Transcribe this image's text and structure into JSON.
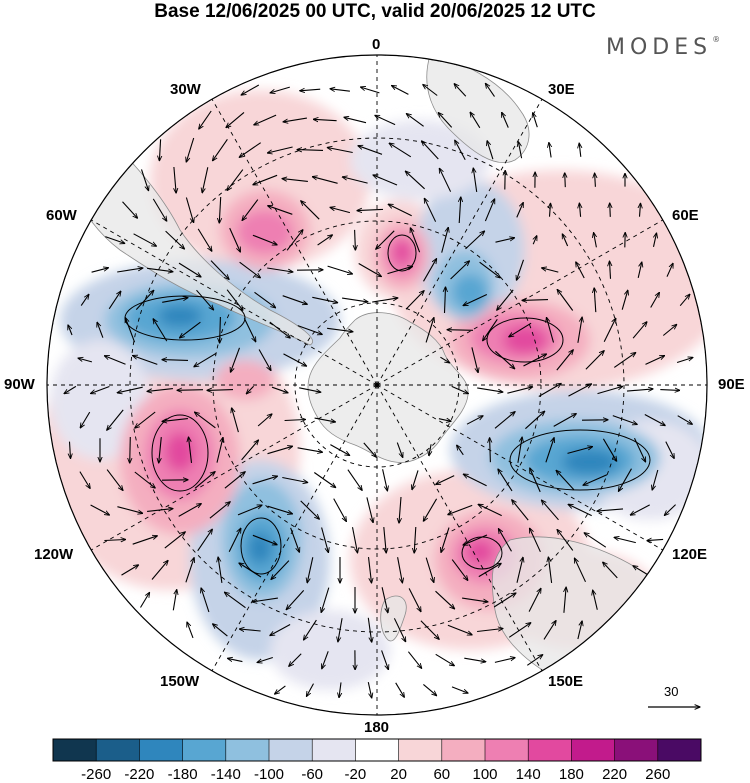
{
  "title": "Base 12/06/2025 00 UTC, valid 20/06/2025 12 UTC",
  "brand": "MODES",
  "brand_mark": "®",
  "longitude_labels": {
    "lon_0": "0",
    "lon_30e": "30E",
    "lon_60e": "60E",
    "lon_90e": "90E",
    "lon_120e": "120E",
    "lon_150e": "150E",
    "lon_180": "180",
    "lon_150w": "150W",
    "lon_120w": "120W",
    "lon_90w": "90W",
    "lon_60w": "60W",
    "lon_30w": "30W"
  },
  "vector_scale": {
    "value": "30"
  },
  "colorbar": {
    "labels": [
      "-260",
      "-220",
      "-180",
      "-140",
      "-100",
      "-60",
      "-20",
      "20",
      "60",
      "100",
      "140",
      "180",
      "220",
      "260"
    ],
    "colors": [
      "#10364f",
      "#1b5e8a",
      "#2f86bd",
      "#58a6d2",
      "#8fc0df",
      "#c5d3e8",
      "#e5e5f1",
      "#ffffff",
      "#f8d6d8",
      "#f4aec0",
      "#ee7fb2",
      "#e2499f",
      "#c21b8c",
      "#8a1079",
      "#4a0a64"
    ]
  },
  "map_colors": {
    "ocean_bg": "#ffffff",
    "land": "#e7e7e7",
    "coast": "#8c8c8c",
    "grid": "#000000"
  },
  "anomaly_features": [
    {
      "name": "pos-high-60e",
      "level": 11
    },
    {
      "name": "pos-high-0",
      "level": 11
    },
    {
      "name": "pos-high-30w",
      "level": 10
    },
    {
      "name": "pos-high-120w",
      "level": 11
    },
    {
      "name": "pos-high-135e",
      "level": 11
    },
    {
      "name": "neg-low-90w",
      "level": 3
    },
    {
      "name": "neg-low-110e",
      "level": 3
    },
    {
      "name": "neg-low-150w",
      "level": 3
    },
    {
      "name": "neg-low-30e",
      "level": 3
    }
  ]
}
